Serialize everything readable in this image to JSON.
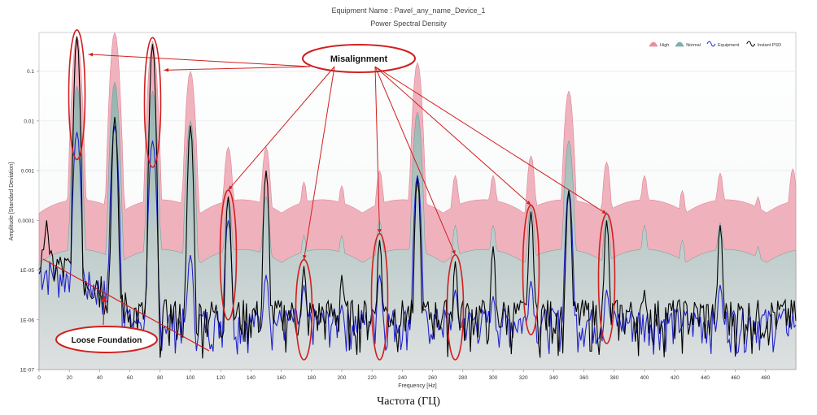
{
  "chart_data": {
    "type": "area",
    "title": "Equipment Name : Pavel_any_name_Device_1",
    "subtitle": "Power Spectral Density",
    "xlabel": "Frequency [Hz]",
    "ylabel": "Amplitude [Standard Deviation]",
    "x_ticks": [
      0,
      20,
      40,
      60,
      80,
      100,
      120,
      140,
      160,
      180,
      200,
      220,
      240,
      260,
      280,
      300,
      320,
      340,
      360,
      380,
      400,
      420,
      440,
      460,
      480
    ],
    "y_ticks": [
      "1E-07",
      "1E-06",
      "1E-05",
      "0.0001",
      "0.001",
      "0.01",
      "0.1"
    ],
    "y_scale": "log",
    "xlim": [
      0,
      500
    ],
    "ylim": [
      1e-07,
      0.6
    ],
    "legend": {
      "position": "top-right",
      "entries": [
        {
          "label": "High",
          "color": "#e8909f"
        },
        {
          "label": "Normal",
          "color": "#7fb0aa"
        },
        {
          "label": "Equipment",
          "color": "#2222cc"
        },
        {
          "label": "Instant PSD",
          "color": "#000000"
        }
      ]
    },
    "series": [
      {
        "name": "High",
        "color": "#e8909f",
        "baseline": 0.0002,
        "peaks": [
          [
            25,
            0.5
          ],
          [
            50,
            0.6
          ],
          [
            75,
            0.4
          ],
          [
            100,
            0.1
          ],
          [
            125,
            0.003
          ],
          [
            150,
            0.003
          ],
          [
            175,
            0.0006
          ],
          [
            200,
            0.0005
          ],
          [
            225,
            0.001
          ],
          [
            250,
            0.15
          ],
          [
            275,
            0.0008
          ],
          [
            300,
            0.0008
          ],
          [
            325,
            0.002
          ],
          [
            350,
            0.04
          ],
          [
            375,
            0.0015
          ],
          [
            400,
            0.0008
          ],
          [
            425,
            0.0004
          ],
          [
            450,
            0.0009
          ],
          [
            475,
            0.0003
          ],
          [
            498,
            0.0011
          ]
        ]
      },
      {
        "name": "Normal",
        "color": "#7fb0aa",
        "baseline": 2e-05,
        "peaks": [
          [
            25,
            0.05
          ],
          [
            50,
            0.06
          ],
          [
            75,
            0.04
          ],
          [
            100,
            0.01
          ],
          [
            125,
            0.0003
          ],
          [
            150,
            0.0003
          ],
          [
            175,
            5e-05
          ],
          [
            200,
            5e-05
          ],
          [
            225,
            0.0001
          ],
          [
            250,
            0.015
          ],
          [
            275,
            8e-05
          ],
          [
            300,
            8e-05
          ],
          [
            325,
            0.0002
          ],
          [
            350,
            0.004
          ],
          [
            375,
            0.00015
          ],
          [
            400,
            8e-05
          ],
          [
            425,
            4e-05
          ],
          [
            450,
            9e-05
          ],
          [
            475,
            3e-05
          ]
        ]
      },
      {
        "name": "Equipment",
        "color": "#2222cc",
        "baseline": 5e-07,
        "peaks": [
          [
            25,
            0.006
          ],
          [
            50,
            0.008
          ],
          [
            75,
            0.004
          ],
          [
            100,
            2e-05
          ],
          [
            125,
            0.0001
          ],
          [
            150,
            8e-06
          ],
          [
            175,
            5e-06
          ],
          [
            200,
            2e-06
          ],
          [
            225,
            8e-06
          ],
          [
            250,
            0.0008
          ],
          [
            275,
            4e-06
          ],
          [
            300,
            3e-06
          ],
          [
            325,
            6e-06
          ],
          [
            350,
            0.0004
          ],
          [
            375,
            4e-06
          ],
          [
            450,
            5e-06
          ]
        ]
      },
      {
        "name": "Instant PSD",
        "color": "#000000",
        "baseline": 4e-07,
        "peaks": [
          [
            5,
            0.0001
          ],
          [
            25,
            0.5
          ],
          [
            50,
            0.012
          ],
          [
            75,
            0.35
          ],
          [
            100,
            0.008
          ],
          [
            125,
            0.0003
          ],
          [
            150,
            0.001
          ],
          [
            175,
            1.2e-05
          ],
          [
            200,
            8e-06
          ],
          [
            225,
            4e-05
          ],
          [
            250,
            0.0007
          ],
          [
            275,
            1.5e-05
          ],
          [
            300,
            3e-05
          ],
          [
            325,
            0.00015
          ],
          [
            350,
            0.0004
          ],
          [
            375,
            0.0001
          ],
          [
            400,
            4e-06
          ],
          [
            450,
            8e-05
          ]
        ]
      }
    ],
    "annotations": {
      "misalignment_label": "Misalignment",
      "loose_foundation_label": "Loose Foundation",
      "misalignment_targets_hz": [
        25,
        75,
        125,
        175,
        225,
        275,
        325,
        375
      ]
    }
  },
  "caption": "Частота (ГЦ)"
}
